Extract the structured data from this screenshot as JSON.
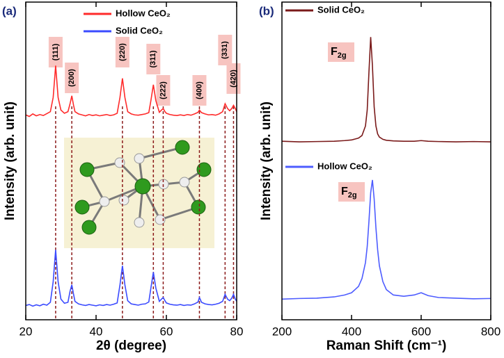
{
  "chart_data": [
    {
      "type": "line",
      "panel_label": "(a)",
      "xlabel": "2θ (degree)",
      "ylabel": "Intensity (arb. unit)",
      "xlim": [
        20,
        80
      ],
      "xticks": [
        20,
        40,
        60,
        80
      ],
      "ylim": [
        0,
        100
      ],
      "legend": "top",
      "x": [
        20,
        21,
        22,
        23,
        24,
        25,
        26,
        27,
        27.8,
        28.5,
        29.2,
        30,
        31,
        32,
        32.6,
        33.1,
        33.6,
        34,
        35,
        36,
        37,
        38,
        39,
        40,
        41,
        42,
        43,
        44,
        45,
        46,
        46.8,
        47.5,
        48.2,
        49,
        50,
        51,
        52,
        53,
        54,
        55,
        55.6,
        56.3,
        57,
        58,
        58.6,
        59.1,
        59.6,
        60,
        61,
        62,
        63,
        64,
        65,
        66,
        67,
        68,
        69,
        69.4,
        70,
        71,
        72,
        73,
        74,
        75,
        76,
        76.7,
        77.4,
        78,
        78.6,
        79.1,
        79.6,
        80
      ],
      "series": [
        {
          "name": "Hollow CeO₂",
          "color": "#ff2a2a",
          "values": [
            64.5,
            64,
            64.8,
            64.2,
            64.6,
            64.3,
            64.9,
            65.5,
            70,
            80,
            70,
            66,
            65,
            65.5,
            68,
            70.5,
            67.5,
            65.5,
            64.8,
            64.5,
            64.2,
            64.6,
            64.3,
            64.5,
            64.2,
            64.4,
            64.6,
            64.3,
            64.5,
            65,
            70,
            76,
            70,
            65.5,
            64.8,
            64.5,
            64.4,
            64.6,
            64.8,
            65.2,
            69,
            74,
            69,
            65.3,
            66,
            66.5,
            65.5,
            65,
            64.6,
            64.4,
            64.3,
            64.5,
            64.3,
            64.6,
            64.4,
            64.8,
            65.3,
            66,
            65.2,
            64.8,
            64.5,
            64.6,
            64.4,
            64.8,
            65.5,
            68,
            66.5,
            65.8,
            66.5,
            67.5,
            66.5,
            65.5
          ]
        },
        {
          "name": "Solid CeO₂",
          "color": "#3b4bff",
          "values": [
            4.5,
            4.8,
            4.3,
            4.7,
            4.4,
            4.9,
            4.6,
            5.5,
            12,
            22,
            12,
            6.5,
            5.2,
            5.5,
            9,
            11,
            8,
            5.8,
            5,
            4.7,
            4.5,
            4.8,
            4.6,
            4.4,
            4.7,
            4.5,
            4.8,
            4.6,
            4.9,
            5.3,
            11,
            17,
            11,
            6,
            5,
            4.8,
            4.6,
            4.9,
            5,
            5.6,
            10,
            15,
            10,
            5.8,
            6.5,
            7,
            6,
            5.3,
            4.9,
            4.7,
            4.6,
            4.8,
            4.5,
            4.7,
            4.6,
            5,
            5.6,
            7,
            5.5,
            5,
            4.8,
            4.7,
            4.9,
            5.2,
            5.8,
            8,
            6.5,
            6,
            6.8,
            8,
            6.5,
            5.8
          ]
        }
      ],
      "reference_lines": [
        28.5,
        33.1,
        47.5,
        56.3,
        59.1,
        69.4,
        76.7,
        79.1
      ],
      "peak_labels": [
        {
          "text": "(111)",
          "x": 28.5
        },
        {
          "text": "(200)",
          "x": 33.1
        },
        {
          "text": "(220)",
          "x": 47.5
        },
        {
          "text": "(311)",
          "x": 56.3
        },
        {
          "text": "(222)",
          "x": 59.1
        },
        {
          "text": "(400)",
          "x": 69.4
        },
        {
          "text": "(331)",
          "x": 76.7
        },
        {
          "text": "(420)",
          "x": 79.1
        }
      ]
    },
    {
      "type": "line",
      "panel_label": "(b)",
      "xlabel": "Raman Shift (cm⁻¹)",
      "ylabel": "Intensity (arb. unit)",
      "xlim": [
        200,
        800
      ],
      "xticks": [
        200,
        400,
        600,
        800
      ],
      "ylim": [
        0,
        100
      ],
      "legend": "per-series",
      "x": [
        200,
        250,
        300,
        350,
        380,
        400,
        420,
        430,
        440,
        445,
        450,
        455,
        460,
        465,
        470,
        475,
        480,
        490,
        500,
        520,
        550,
        580,
        600,
        620,
        650,
        700,
        750,
        800
      ],
      "series": [
        {
          "name": "Solid CeO₂",
          "color": "#7a1a1a",
          "peak_label": {
            "main": "F",
            "sub": "2g"
          },
          "values": [
            56.2,
            56,
            56.1,
            56.2,
            56.4,
            56.6,
            57.2,
            58,
            61,
            66,
            78,
            89,
            80,
            67,
            61,
            58.5,
            57.5,
            56.8,
            56.5,
            56.3,
            56.2,
            56.2,
            56.4,
            56.2,
            56.1,
            56,
            56.1,
            56
          ]
        },
        {
          "name": "Hollow CeO₂",
          "color": "#4d5cff",
          "peak_label": {
            "main": "F",
            "sub": "2g"
          },
          "values": [
            6.5,
            6.7,
            6.8,
            7.2,
            7.8,
            8.5,
            10.5,
            13,
            18,
            23,
            31,
            40,
            44,
            38,
            29,
            22,
            17,
            12,
            9.5,
            7.8,
            7.4,
            7.8,
            8.5,
            7.6,
            7,
            6.8,
            6.6,
            6.7
          ]
        }
      ]
    }
  ]
}
